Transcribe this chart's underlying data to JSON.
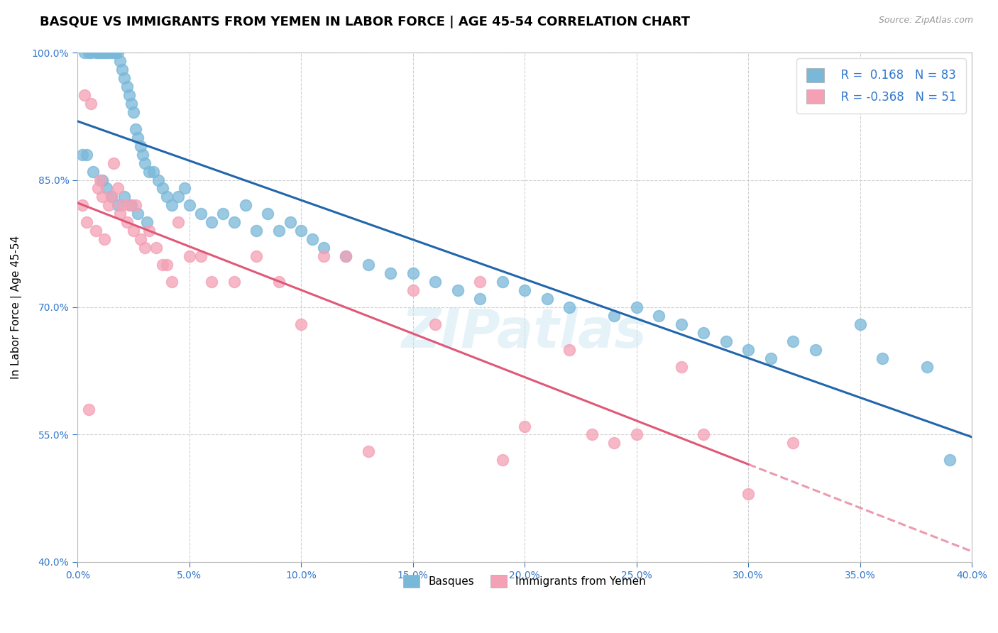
{
  "title": "BASQUE VS IMMIGRANTS FROM YEMEN IN LABOR FORCE | AGE 45-54 CORRELATION CHART",
  "source": "Source: ZipAtlas.com",
  "ylabel": "In Labor Force | Age 45-54",
  "xlim": [
    0.0,
    40.0
  ],
  "ylim": [
    40.0,
    100.0
  ],
  "xticks": [
    0.0,
    5.0,
    10.0,
    15.0,
    20.0,
    25.0,
    30.0,
    35.0,
    40.0
  ],
  "yticks": [
    40.0,
    55.0,
    70.0,
    85.0,
    100.0
  ],
  "xticklabels": [
    "0.0%",
    "5.0%",
    "10.0%",
    "15.0%",
    "20.0%",
    "25.0%",
    "30.0%",
    "35.0%",
    "40.0%"
  ],
  "yticklabels": [
    "40.0%",
    "55.0%",
    "70.0%",
    "85.0%",
    "100.0%"
  ],
  "blue_color": "#7ab8d9",
  "pink_color": "#f4a0b5",
  "blue_line_color": "#2166ac",
  "pink_line_color": "#e05878",
  "legend_blue_label": "Basques",
  "legend_pink_label": "Immigrants from Yemen",
  "R_blue": 0.168,
  "N_blue": 83,
  "R_pink": -0.368,
  "N_pink": 51,
  "blue_x": [
    0.2,
    0.3,
    0.4,
    0.5,
    0.6,
    0.7,
    0.8,
    0.9,
    1.0,
    1.1,
    1.2,
    1.3,
    1.4,
    1.5,
    1.6,
    1.7,
    1.8,
    1.9,
    2.0,
    2.1,
    2.2,
    2.3,
    2.4,
    2.5,
    2.6,
    2.7,
    2.8,
    2.9,
    3.0,
    3.2,
    3.4,
    3.6,
    3.8,
    4.0,
    4.2,
    4.5,
    4.8,
    5.0,
    5.5,
    6.0,
    6.5,
    7.0,
    7.5,
    8.0,
    8.5,
    9.0,
    9.5,
    10.0,
    10.5,
    11.0,
    12.0,
    13.0,
    14.0,
    15.0,
    16.0,
    17.0,
    18.0,
    19.0,
    20.0,
    21.0,
    22.0,
    24.0,
    25.0,
    26.0,
    27.0,
    28.0,
    29.0,
    30.0,
    31.0,
    32.0,
    33.0,
    35.0,
    36.0,
    38.0,
    39.0,
    1.1,
    1.3,
    1.5,
    1.8,
    2.1,
    2.4,
    2.7,
    3.1
  ],
  "blue_y": [
    88,
    100,
    88,
    100,
    100,
    86,
    100,
    100,
    100,
    100,
    100,
    100,
    100,
    100,
    100,
    100,
    100,
    99,
    98,
    97,
    96,
    95,
    94,
    93,
    91,
    90,
    89,
    88,
    87,
    86,
    86,
    85,
    84,
    83,
    82,
    83,
    84,
    82,
    81,
    80,
    81,
    80,
    82,
    79,
    81,
    79,
    80,
    79,
    78,
    77,
    76,
    75,
    74,
    74,
    73,
    72,
    71,
    73,
    72,
    71,
    70,
    69,
    70,
    69,
    68,
    67,
    66,
    65,
    64,
    66,
    65,
    68,
    64,
    63,
    52,
    85,
    84,
    83,
    82,
    83,
    82,
    81,
    80
  ],
  "pink_x": [
    0.2,
    0.3,
    0.4,
    0.5,
    0.6,
    0.8,
    0.9,
    1.0,
    1.1,
    1.2,
    1.4,
    1.5,
    1.6,
    1.8,
    1.9,
    2.0,
    2.2,
    2.3,
    2.5,
    2.6,
    2.8,
    3.0,
    3.2,
    3.5,
    3.8,
    4.0,
    4.2,
    4.5,
    5.0,
    5.5,
    6.0,
    7.0,
    8.0,
    9.0,
    10.0,
    11.0,
    12.0,
    13.0,
    15.0,
    16.0,
    18.0,
    19.0,
    20.0,
    22.0,
    23.0,
    24.0,
    25.0,
    27.0,
    28.0,
    30.0,
    32.0
  ],
  "pink_y": [
    82,
    95,
    80,
    58,
    94,
    79,
    84,
    85,
    83,
    78,
    82,
    83,
    87,
    84,
    81,
    82,
    80,
    82,
    79,
    82,
    78,
    77,
    79,
    77,
    75,
    75,
    73,
    80,
    76,
    76,
    73,
    73,
    76,
    73,
    68,
    76,
    76,
    53,
    72,
    68,
    73,
    52,
    56,
    65,
    55,
    54,
    55,
    63,
    55,
    48,
    54
  ],
  "watermark": "ZIPatlas",
  "background_color": "#ffffff",
  "grid_color": "#cccccc",
  "pink_solid_max_x": 30.0,
  "title_fontsize": 13,
  "axis_label_fontsize": 11,
  "tick_fontsize": 10,
  "source_fontsize": 9
}
